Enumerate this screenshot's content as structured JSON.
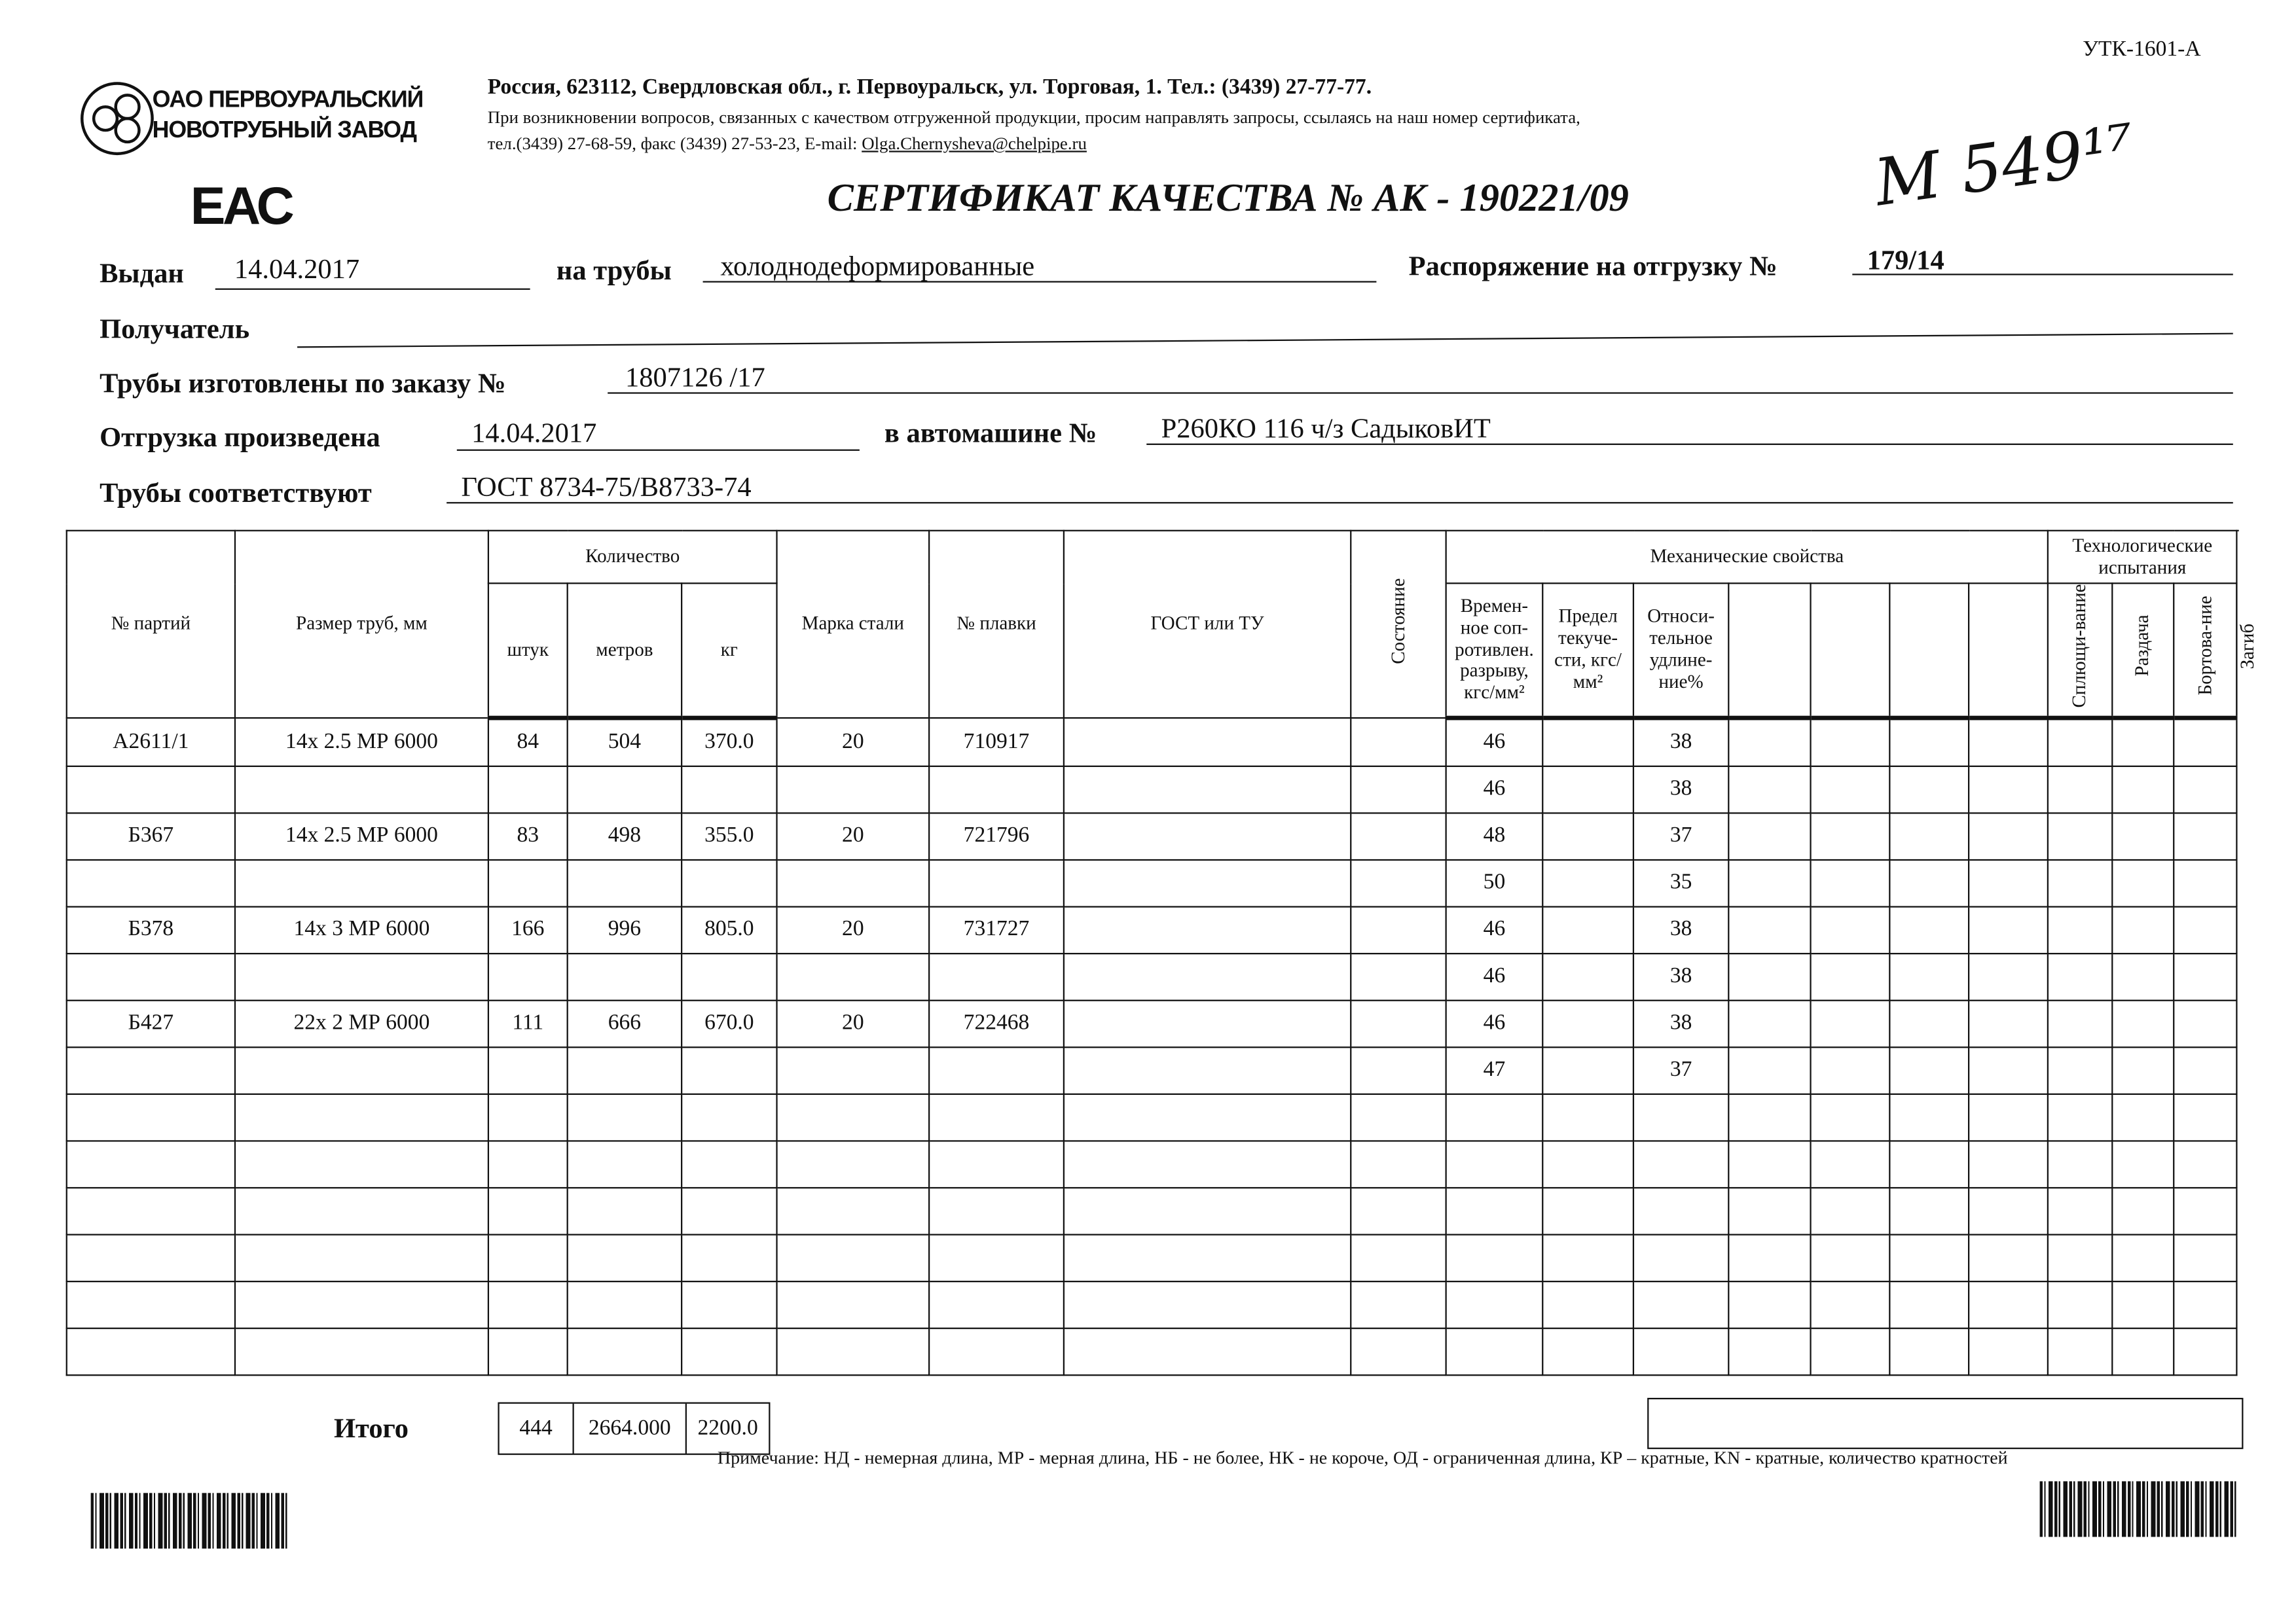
{
  "form_code": "УТК-1601-А",
  "company": {
    "line1": "ОАО ПЕРВОУРАЛЬСКИЙ",
    "line2": "НОВОТРУБНЫЙ ЗАВОД"
  },
  "eac_mark": "ЕАС",
  "address": "Россия, 623112, Свердловская обл., г. Первоуральск, ул. Торговая, 1. Тел.: (3439) 27-77-77.",
  "inquiry_note": "При возникновении вопросов, связанных с качеством отгруженной продукции, просим направлять запросы, ссылаясь на наш номер сертификата,",
  "contacts": {
    "prefix": "тел.(3439) 27-68-59, факс (3439) 27-53-23,  E-mail: ",
    "email": "Olga.Chernysheva@chelpipe.ru"
  },
  "title": "СЕРТИФИКАТ КАЧЕСТВА   №  АК - 190221/09",
  "handwritten_note": "М 549¹⁷",
  "fields": {
    "issued_label": "Выдан",
    "issued_value": "14.04.2017",
    "pipes_label": "на трубы",
    "pipes_value": "холоднодеформированные",
    "order_label": "Распоряжение на отгрузку №",
    "order_value": "179/14",
    "recipient_label": "Получатель",
    "recipient_value": "",
    "made_label": "Трубы изготовлены по заказу №",
    "made_value": "1807126   /17",
    "shipped_label": "Отгрузка произведена",
    "shipped_value": "14.04.2017",
    "vehicle_label": "в автомашине №",
    "vehicle_value": "Р260КО 116 ч/з СадыковИТ",
    "conform_label": "Трубы соответствуют",
    "conform_value": "ГОСТ 8734-75/В8733-74"
  },
  "table": {
    "headers": {
      "lot": "№ партий",
      "size": "Размер труб, мм",
      "quantity": "Количество",
      "pcs": "штук",
      "meters": "метров",
      "kg": "кг",
      "steel": "Марка стали",
      "heat": "№ плавки",
      "gost": "ГОСТ или ТУ",
      "state": "Состояние",
      "mech": "Механические свойства",
      "tensile": "Времен-ное соп-ротивлен. разрыву, кгс/мм²",
      "yield": "Предел текуче-сти, кгс/мм²",
      "elong": "Относи-тельное удлине-ние%",
      "tech": "Технологические испытания",
      "flatten": "Сплющи-вание",
      "expand": "Раздача",
      "flange": "Бортова-ние",
      "bend": "Загиб"
    },
    "rows": [
      {
        "lot": "А2611/1",
        "size": "14х 2.5 МР 6000",
        "pcs": "84",
        "meters": "504",
        "kg": "370.0",
        "steel": "20",
        "heat": "710917",
        "tensile": "46",
        "elong": "38"
      },
      {
        "lot": "",
        "size": "",
        "pcs": "",
        "meters": "",
        "kg": "",
        "steel": "",
        "heat": "",
        "tensile": "46",
        "elong": "38"
      },
      {
        "lot": "Б367",
        "size": "14х 2.5 МР 6000",
        "pcs": "83",
        "meters": "498",
        "kg": "355.0",
        "steel": "20",
        "heat": "721796",
        "tensile": "48",
        "elong": "37"
      },
      {
        "lot": "",
        "size": "",
        "pcs": "",
        "meters": "",
        "kg": "",
        "steel": "",
        "heat": "",
        "tensile": "50",
        "elong": "35"
      },
      {
        "lot": "Б378",
        "size": "14х 3 МР 6000",
        "pcs": "166",
        "meters": "996",
        "kg": "805.0",
        "steel": "20",
        "heat": "731727",
        "tensile": "46",
        "elong": "38"
      },
      {
        "lot": "",
        "size": "",
        "pcs": "",
        "meters": "",
        "kg": "",
        "steel": "",
        "heat": "",
        "tensile": "46",
        "elong": "38"
      },
      {
        "lot": "Б427",
        "size": "22х 2 МР 6000",
        "pcs": "111",
        "meters": "666",
        "kg": "670.0",
        "steel": "20",
        "heat": "722468",
        "tensile": "46",
        "elong": "38"
      },
      {
        "lot": "",
        "size": "",
        "pcs": "",
        "meters": "",
        "kg": "",
        "steel": "",
        "heat": "",
        "tensile": "47",
        "elong": "37"
      }
    ],
    "empty_rows": 6,
    "total_label": "Итого",
    "total_pcs": "444",
    "total_meters": "2664.000",
    "total_kg": "2200.0"
  },
  "footnote": "Примечание: НД - немерная длина, МР - мерная длина, НБ - не более, НК - не короче, ОД - ограниченная длина, КР – кратные, KN - кратные, количество кратностей"
}
